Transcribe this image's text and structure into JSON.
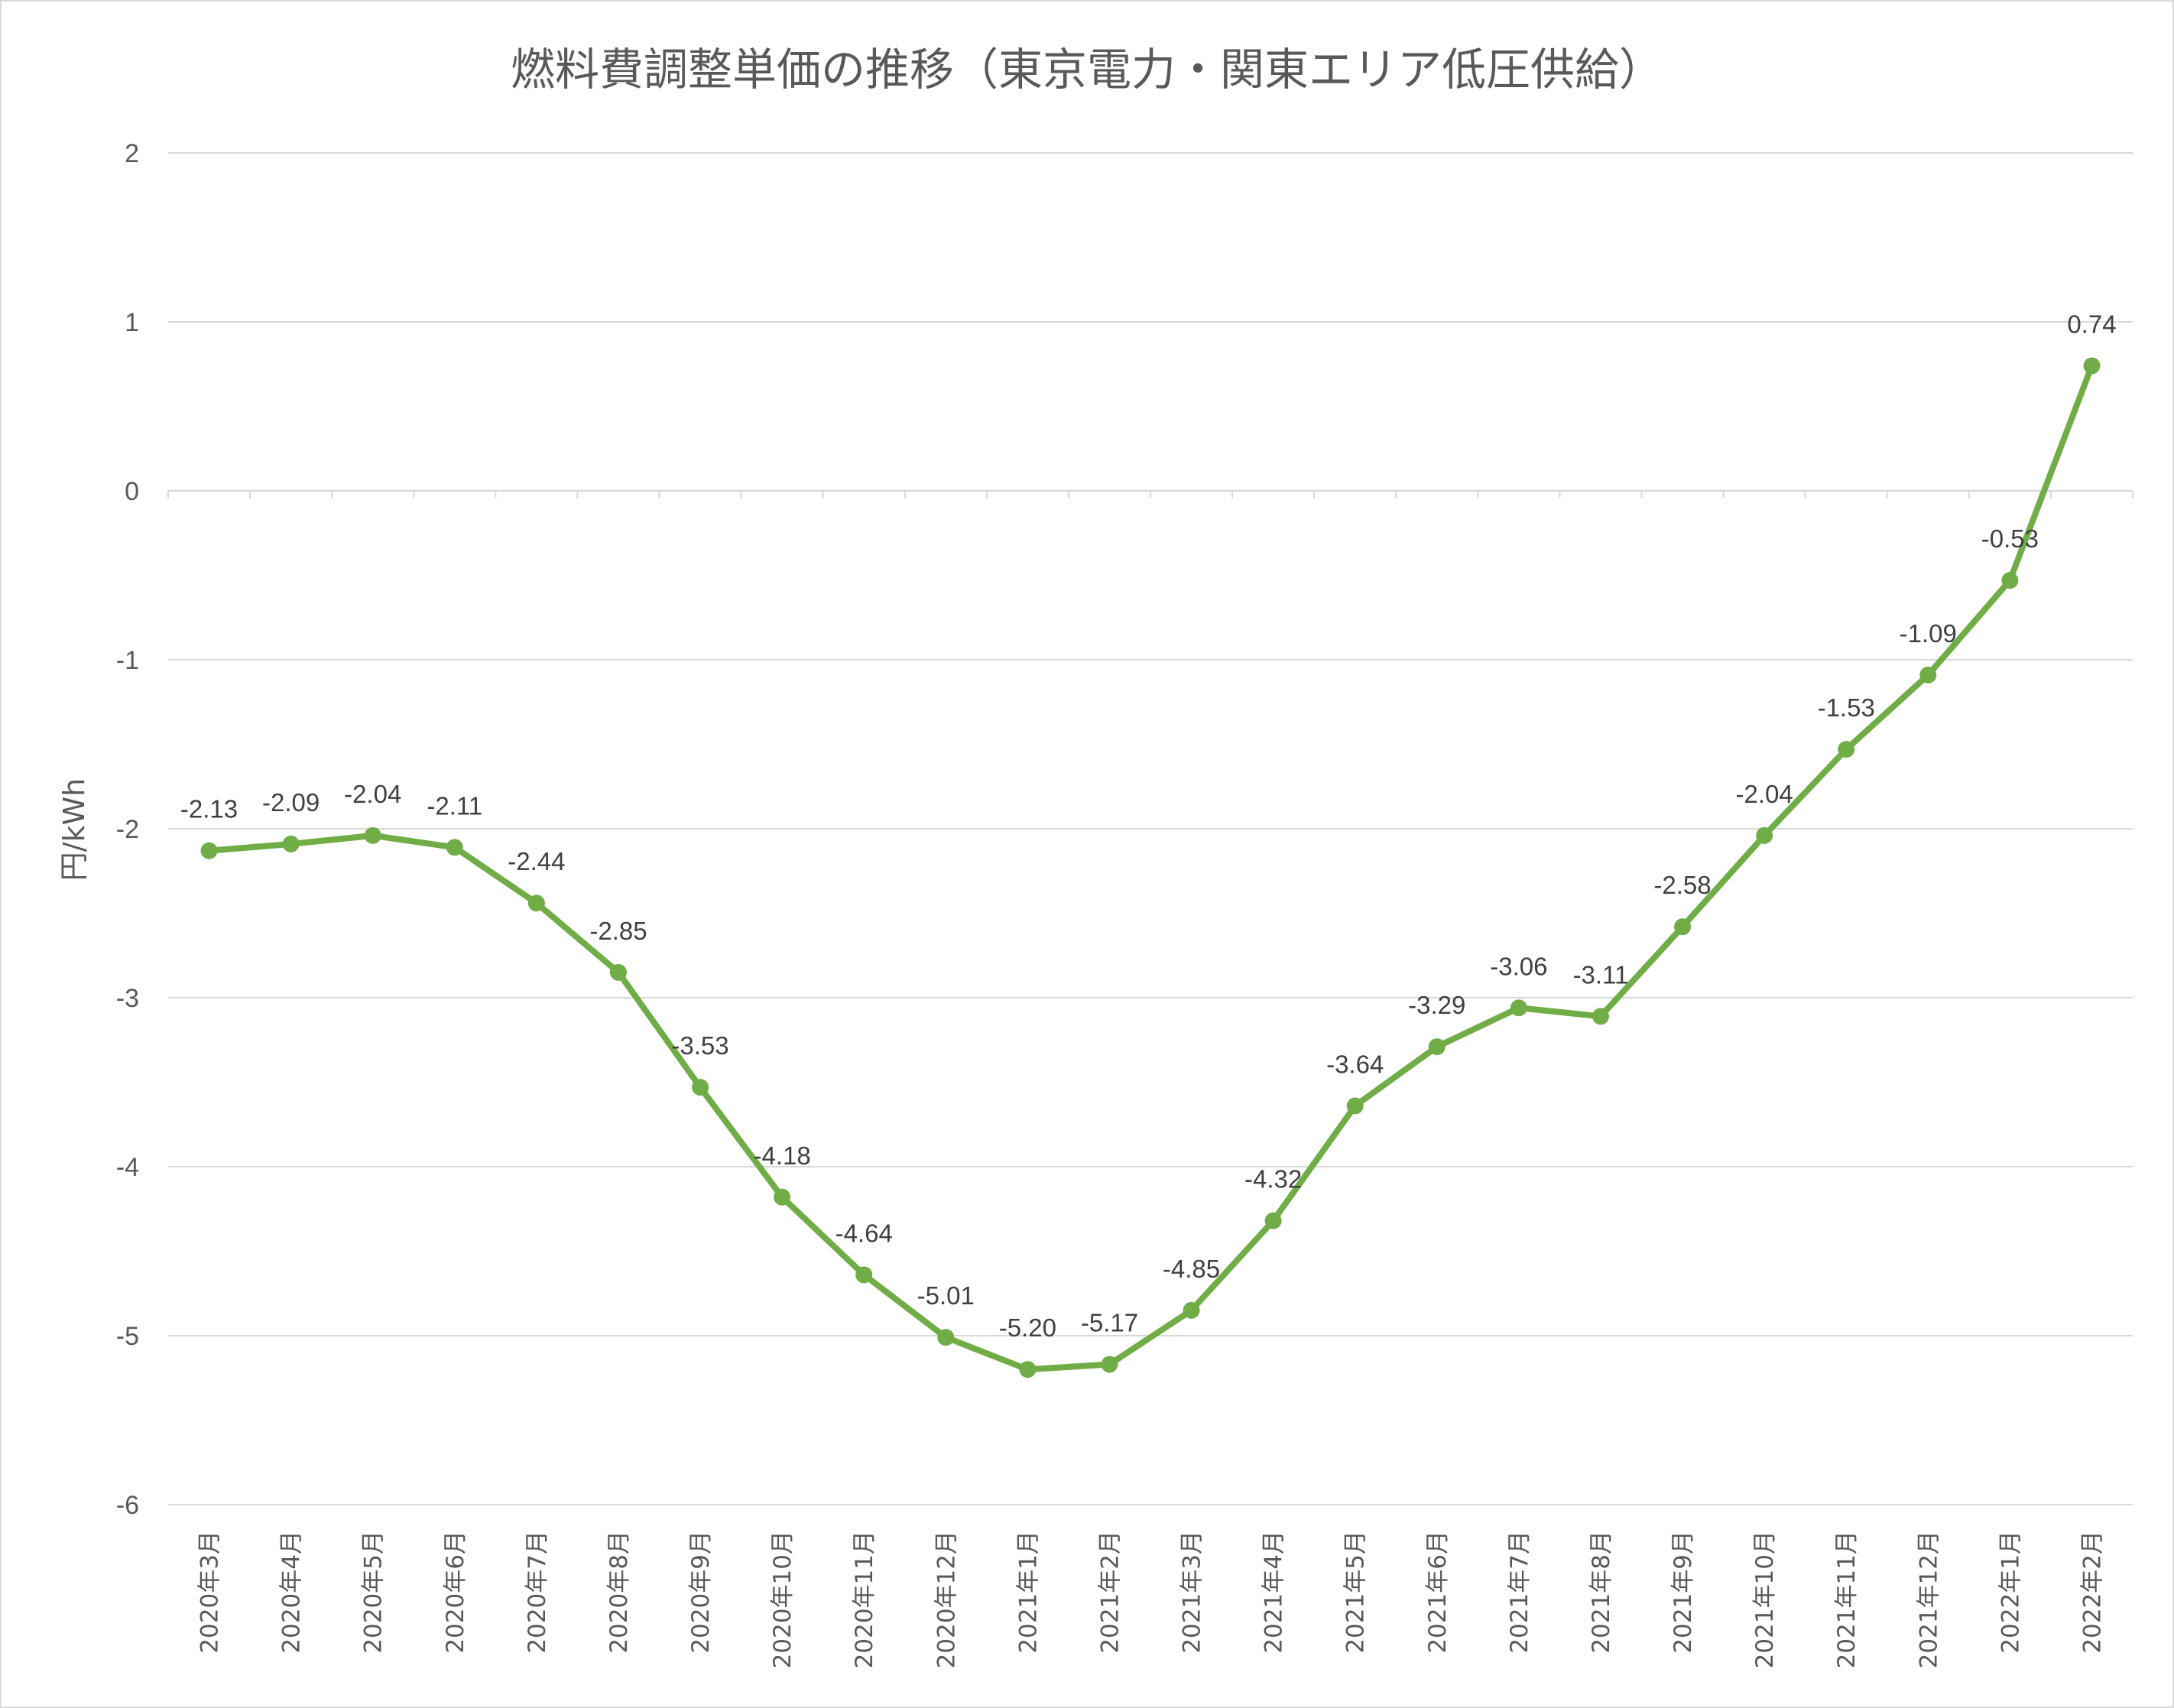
{
  "chart_data": {
    "type": "line",
    "title": "燃料費調整単価の推移（東京電力・関東エリア低圧供給）",
    "xlabel": "",
    "ylabel": "円/kWh",
    "ylim": [
      -6,
      2
    ],
    "yticks": [
      2,
      1,
      0,
      -1,
      -2,
      -3,
      -4,
      -5,
      -6
    ],
    "grid": true,
    "legend": "none",
    "categories": [
      "2020年3月",
      "2020年4月",
      "2020年5月",
      "2020年6月",
      "2020年7月",
      "2020年8月",
      "2020年9月",
      "2020年10月",
      "2020年11月",
      "2020年12月",
      "2021年1月",
      "2021年2月",
      "2021年3月",
      "2021年4月",
      "2021年5月",
      "2021年6月",
      "2021年7月",
      "2021年8月",
      "2021年9月",
      "2021年10月",
      "2021年11月",
      "2021年12月",
      "2022年1月",
      "2022年2月"
    ],
    "series": [
      {
        "color": "#70ad47",
        "values": [
          -2.13,
          -2.09,
          -2.04,
          -2.11,
          -2.44,
          -2.85,
          -3.53,
          -4.18,
          -4.64,
          -5.01,
          -5.2,
          -5.17,
          -4.85,
          -4.32,
          -3.64,
          -3.29,
          -3.06,
          -3.11,
          -2.58,
          -2.04,
          -1.53,
          -1.09,
          -0.53,
          0.74
        ],
        "labels": [
          "-2.13",
          "-2.09",
          "-2.04",
          "-2.11",
          "-2.44",
          "-2.85",
          "-3.53",
          "-4.18",
          "-4.64",
          "-5.01",
          "-5.20",
          "-5.17",
          "-4.85",
          "-4.32",
          "-3.64",
          "-3.29",
          "-3.06",
          "-3.11",
          "-2.58",
          "-2.04",
          "-1.53",
          "-1.09",
          "-0.53",
          "0.74"
        ]
      }
    ],
    "colors": {
      "gridline": "#d9d9d9",
      "axis": "#d9d9d9",
      "text": "#595959",
      "label": "#404040"
    }
  }
}
